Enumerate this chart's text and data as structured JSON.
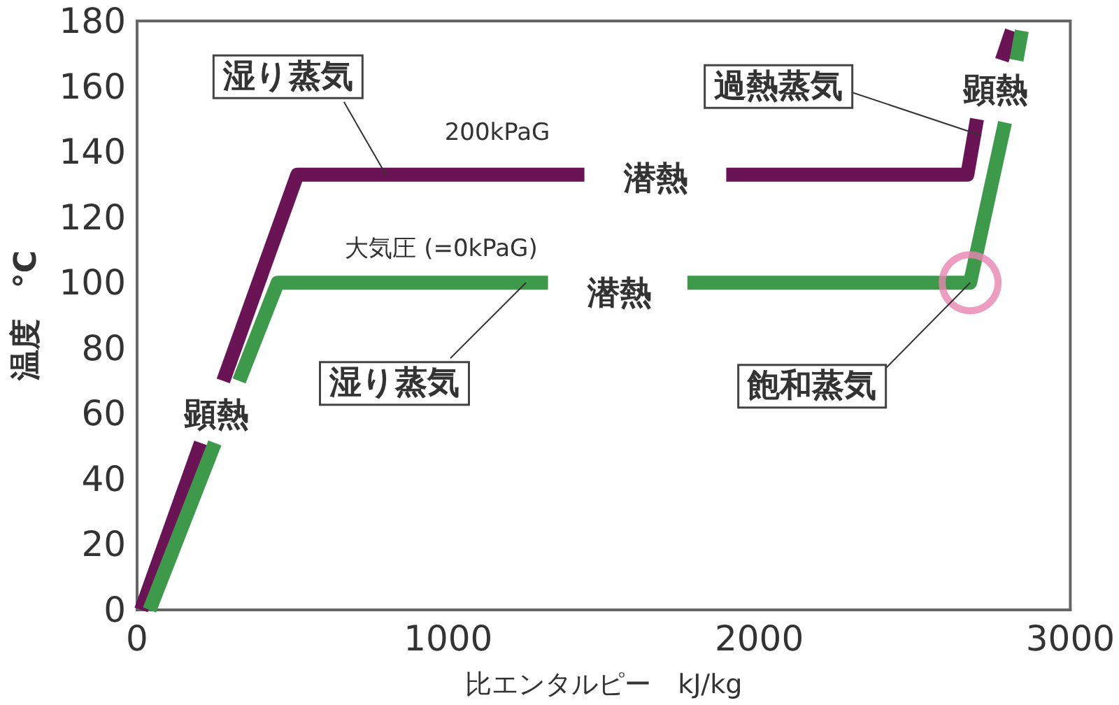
{
  "chart_data": {
    "type": "line",
    "xlabel": "比エンタルピー　kJ/kg",
    "ylabel": "温度　°C",
    "xlim": [
      0,
      3000
    ],
    "xticks": [
      0,
      1000,
      2000,
      3000
    ],
    "ylim": [
      0,
      180
    ],
    "yticks": [
      0,
      20,
      40,
      60,
      80,
      100,
      120,
      140,
      160,
      180
    ],
    "marker": "none",
    "line_style": "solid",
    "series": [
      {
        "name": "200kPaG",
        "color": "#6b1455",
        "x": [
          13,
          205,
          null,
          277,
          515,
          1438,
          null,
          1894,
          2669,
          2700,
          null,
          2780,
          2812
        ],
        "values": [
          0,
          51,
          null,
          70,
          133,
          133,
          null,
          133,
          133,
          150,
          null,
          168,
          177
        ]
      },
      {
        "name": "大気圧 (=0kPaG)",
        "color": "#3d9a4a",
        "x": [
          40,
          250,
          null,
          328,
          452,
          1321,
          null,
          1769,
          2678,
          2790,
          null,
          2827,
          2844
        ],
        "values": [
          0,
          51,
          null,
          70,
          100,
          100,
          null,
          100,
          100,
          149,
          null,
          168,
          177
        ]
      },
      {
        "type": "scatter",
        "color": "#e986b0",
        "marker": "circle",
        "x": [
          2678
        ],
        "values": [
          100
        ]
      }
    ],
    "annotations": [
      {
        "text": "湿り蒸気",
        "x": 800,
        "y": 133
      },
      "潜熱",
      {
        "text": "湿り蒸気",
        "x": 1250,
        "y": 100
      },
      "潜熱",
      "顕熱",
      {
        "text": "過熱蒸気",
        "x": 2714,
        "y": 145
      },
      "顕熱",
      {
        "text": "飽和蒸気",
        "x": 2678,
        "y": 100
      }
    ]
  }
}
